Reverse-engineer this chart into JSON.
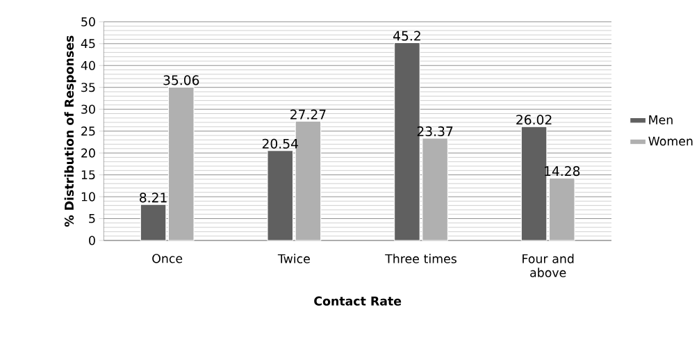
{
  "chart_data": {
    "type": "bar",
    "xlabel": "Contact Rate",
    "ylabel": "% Distribution of Responses",
    "categories": [
      "Once",
      "Twice",
      "Three times",
      "Four and above"
    ],
    "series": [
      {
        "name": "Men",
        "color": "#606060",
        "values": [
          8.21,
          20.54,
          45.2,
          26.02
        ]
      },
      {
        "name": "Women",
        "color": "#b0b0b0",
        "values": [
          35.06,
          27.27,
          23.37,
          14.28
        ]
      }
    ],
    "ylim": [
      0,
      50
    ],
    "yticks": [
      0,
      5,
      10,
      15,
      20,
      25,
      30,
      35,
      40,
      45,
      50
    ],
    "grid": "y",
    "legend": "right",
    "data_labels": true
  }
}
